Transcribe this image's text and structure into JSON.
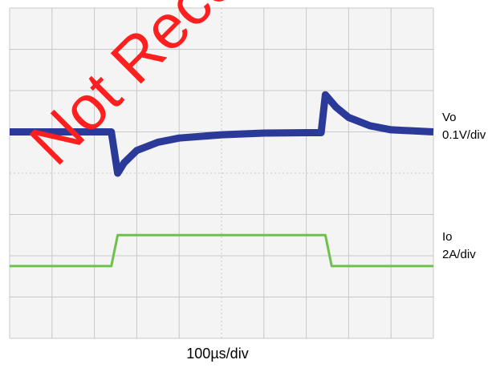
{
  "chart_data": {
    "type": "line",
    "title": "",
    "watermark": "Not Recommended",
    "xlabel": "100µs/div",
    "grid": true,
    "grid_divisions": {
      "x": 10,
      "y": 8
    },
    "background": "#f4f4f4",
    "grid_color": "#c8c8c8",
    "series": [
      {
        "name": "Vo",
        "scale": "0.1V/div",
        "color": "#2b3a99",
        "x": [
          0,
          2.4,
          2.55,
          2.7,
          3.0,
          3.5,
          4.0,
          5.0,
          6.0,
          7.0,
          7.35,
          7.45,
          7.7,
          8.0,
          8.5,
          9.0,
          10.0
        ],
        "y": [
          0,
          0,
          -1.0,
          -0.75,
          -0.45,
          -0.25,
          -0.15,
          -0.07,
          -0.03,
          -0.02,
          -0.02,
          0.9,
          0.6,
          0.35,
          0.15,
          0.05,
          0
        ]
      },
      {
        "name": "Io",
        "scale": "2A/div",
        "color": "#6cc24a",
        "x": [
          0,
          2.4,
          2.55,
          7.45,
          7.6,
          10.0
        ],
        "y": [
          0,
          0,
          0.75,
          0.75,
          0,
          0
        ]
      }
    ]
  },
  "labels": {
    "vo_name": "Vo",
    "vo_scale": "0.1V/div",
    "io_name": "Io",
    "io_scale": "2A/div",
    "time_scale": "100µs/div",
    "watermark": "Not Recommended"
  },
  "colors": {
    "watermark": "#ff1f1f"
  }
}
